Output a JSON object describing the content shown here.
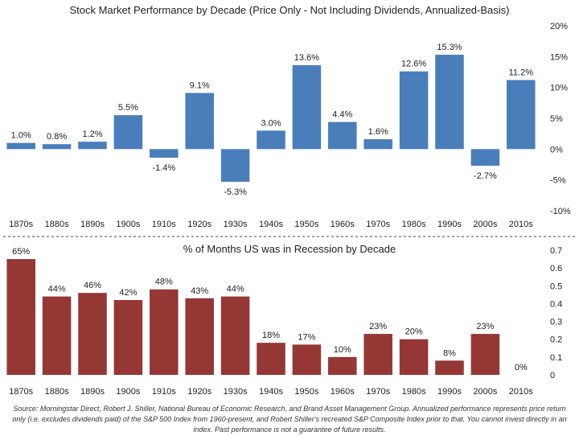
{
  "chart_data": [
    {
      "type": "bar",
      "title": "Stock Market Performance by Decade (Price Only - Not Including Dividends, Annualized-Basis)",
      "categories": [
        "1870s",
        "1880s",
        "1890s",
        "1900s",
        "1910s",
        "1920s",
        "1930s",
        "1940s",
        "1950s",
        "1960s",
        "1970s",
        "1980s",
        "1990s",
        "2000s",
        "2010s"
      ],
      "values": [
        1.0,
        0.8,
        1.2,
        5.5,
        -1.4,
        9.1,
        -5.3,
        3.0,
        13.6,
        4.4,
        1.6,
        12.6,
        15.3,
        -2.7,
        11.2
      ],
      "data_labels": [
        "1.0%",
        "0.8%",
        "1.2%",
        "5.5%",
        "-1.4%",
        "9.1%",
        "-5.3%",
        "3.0%",
        "13.6%",
        "4.4%",
        "1.6%",
        "12.6%",
        "15.3%",
        "-2.7%",
        "11.2%"
      ],
      "ylim": [
        -10,
        20
      ],
      "yticks": [
        -10,
        -5,
        0,
        5,
        10,
        15,
        20
      ],
      "ytick_labels": [
        "-10%",
        "-5%",
        "0%",
        "5%",
        "10%",
        "15%",
        "20%"
      ],
      "y_axis_side": "right",
      "xlabel": "",
      "ylabel": "",
      "grid": false,
      "color": "#4a7ebb"
    },
    {
      "type": "bar",
      "title": "% of Months US was in Recession by Decade",
      "categories": [
        "1870s",
        "1880s",
        "1890s",
        "1900s",
        "1910s",
        "1920s",
        "1930s",
        "1940s",
        "1950s",
        "1960s",
        "1970s",
        "1980s",
        "1990s",
        "2000s",
        "2010s"
      ],
      "values": [
        0.65,
        0.44,
        0.46,
        0.42,
        0.48,
        0.43,
        0.44,
        0.18,
        0.17,
        0.1,
        0.23,
        0.2,
        0.08,
        0.23,
        0.0
      ],
      "data_labels": [
        "65%",
        "44%",
        "46%",
        "42%",
        "48%",
        "43%",
        "44%",
        "18%",
        "17%",
        "10%",
        "23%",
        "20%",
        "8%",
        "23%",
        "0%"
      ],
      "ylim": [
        0,
        0.7
      ],
      "yticks": [
        0,
        0.1,
        0.2,
        0.3,
        0.4,
        0.5,
        0.6,
        0.7
      ],
      "ytick_labels": [
        "0",
        "0.1",
        "0.2",
        "0.3",
        "0.4",
        "0.5",
        "0.6",
        "0.7"
      ],
      "y_axis_side": "right",
      "xlabel": "",
      "ylabel": "",
      "grid": false,
      "color": "#953735"
    }
  ],
  "footnote": "Source: Morningstar Direct, Robert J. Shiller, National Bureau of Economic Research, and Brand Asset Management Group. Annualized performance represents price return only (i.e. excludes dividends paid) of the S&P 500 Index from 1960-present, and Robert Shiller's recreated S&P Composite Index prior to that. You cannot invest directly in an index. Past performance is not a guarantee of future results."
}
